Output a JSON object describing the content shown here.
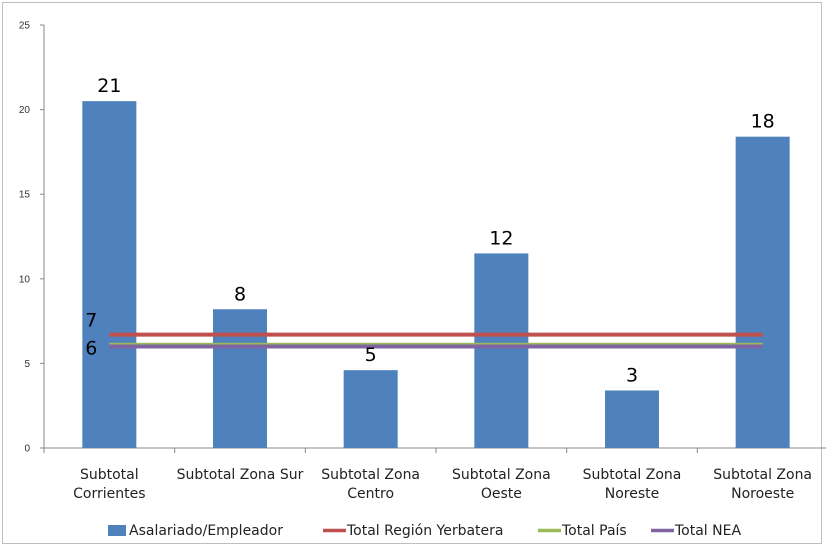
{
  "chart_data": {
    "type": "bar",
    "title": "",
    "xlabel": "",
    "ylabel": "",
    "ylim": [
      0,
      25
    ],
    "yticks": [
      0,
      5,
      10,
      15,
      20,
      25
    ],
    "grid": false,
    "legend_position": "bottom",
    "categories": [
      [
        "Subtotal",
        "Corrientes"
      ],
      [
        "Subtotal Zona Sur"
      ],
      [
        "Subtotal Zona",
        "Centro"
      ],
      [
        "Subtotal Zona",
        "Oeste"
      ],
      [
        "Subtotal Zona",
        "Noreste"
      ],
      [
        "Subtotal Zona",
        "Noroeste"
      ]
    ],
    "series": [
      {
        "name": "Asalariado/Empleador",
        "type": "bar",
        "color": "#4f81bd",
        "values": [
          20.5,
          8.2,
          4.6,
          11.5,
          3.4,
          18.4
        ],
        "labels": [
          "21",
          "8",
          "5",
          "12",
          "3",
          "18"
        ]
      },
      {
        "name": "Total Región Yerbatera",
        "type": "line",
        "color": "#c0504d",
        "value": 6.7,
        "label": "7"
      },
      {
        "name": "Total País",
        "type": "line",
        "color": "#9bbb59",
        "value": 6.1
      },
      {
        "name": "Total NEA",
        "type": "line",
        "color": "#8064a2",
        "value": 6.0,
        "label": "6"
      }
    ]
  }
}
